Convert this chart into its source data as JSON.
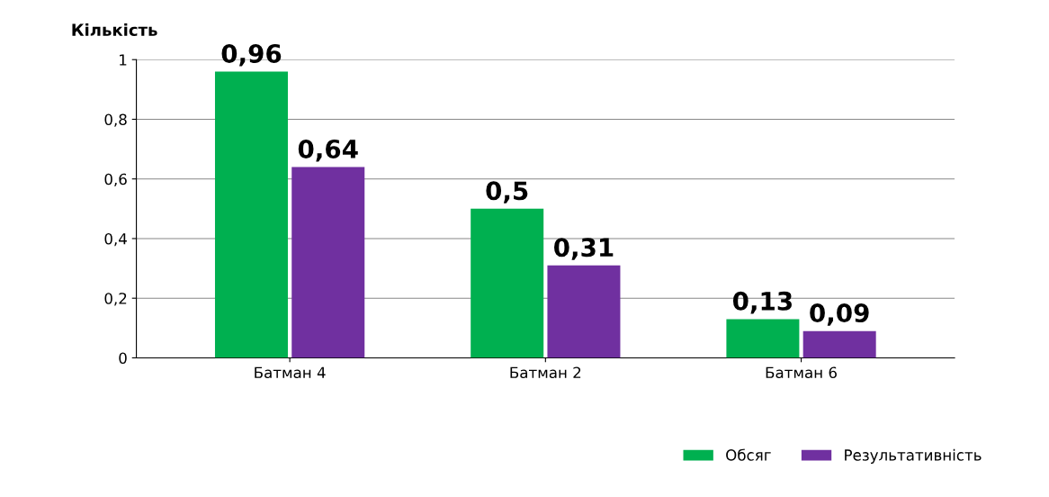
{
  "chart_data": {
    "type": "bar",
    "ylabel": "Кількість",
    "categories": [
      "Батман 4",
      "Батман 2",
      "Батман 6"
    ],
    "series": [
      {
        "name": "Обсяг",
        "color": "#00b050",
        "values": [
          0.96,
          0.5,
          0.13
        ],
        "value_labels": [
          "0,96",
          "0,5",
          "0,13"
        ]
      },
      {
        "name": "Результативність",
        "color": "#7030a0",
        "values": [
          0.64,
          0.31,
          0.09
        ],
        "value_labels": [
          "0,64",
          "0,31",
          "0,09"
        ]
      }
    ],
    "ylim": [
      0,
      1
    ],
    "yticks": [
      0,
      {
        "value": 0.2,
        "label": "0,2"
      },
      {
        "value": 0.4,
        "label": "0,4"
      },
      {
        "value": 0.6,
        "label": "0,6"
      },
      {
        "value": 0.8,
        "label": "0,8"
      },
      1
    ],
    "grid": "y",
    "legend": "bottom right"
  }
}
